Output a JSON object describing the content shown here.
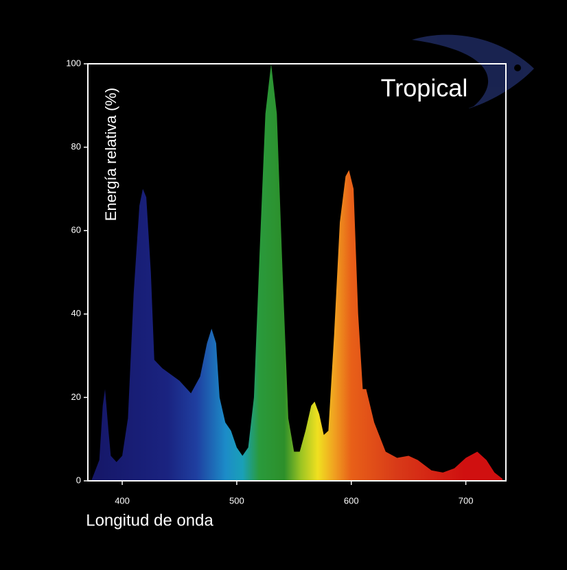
{
  "chart_data": {
    "type": "area",
    "annotation": "Tropical",
    "x_label": "Longitud de onda",
    "y_label": "Energía relativa (%)",
    "x": [
      373,
      380,
      383,
      385,
      388,
      390,
      395,
      400,
      405,
      410,
      415,
      418,
      421,
      425,
      428,
      435,
      450,
      460,
      468,
      474,
      478,
      482,
      485,
      490,
      495,
      500,
      505,
      510,
      515,
      520,
      525,
      530,
      535,
      540,
      545,
      550,
      555,
      560,
      565,
      568,
      572,
      576,
      580,
      585,
      590,
      595,
      598,
      602,
      606,
      610,
      613,
      620,
      630,
      640,
      650,
      658,
      670,
      680,
      690,
      700,
      710,
      718,
      725,
      732
    ],
    "series": [
      {
        "values": [
          0,
          5,
          18,
          22,
          12,
          6,
          4.5,
          6,
          15,
          45,
          66,
          70,
          68,
          50,
          29,
          27,
          24,
          21,
          25,
          33,
          36.5,
          33,
          20,
          14,
          12,
          8,
          6,
          8,
          20,
          55,
          88,
          100,
          88,
          50,
          15,
          7,
          7,
          12,
          18,
          19,
          16,
          11,
          12,
          35,
          62,
          73,
          74.5,
          70,
          40,
          22,
          22,
          14,
          7,
          5.5,
          6,
          5,
          2.5,
          2,
          3,
          5.5,
          7,
          5,
          2,
          0.5
        ]
      }
    ],
    "xlim": [
      370,
      735
    ],
    "ylim": [
      0,
      100
    ],
    "xticks": [
      400,
      500,
      600,
      700
    ],
    "yticks": [
      0,
      20,
      40,
      60,
      80,
      100
    ]
  }
}
